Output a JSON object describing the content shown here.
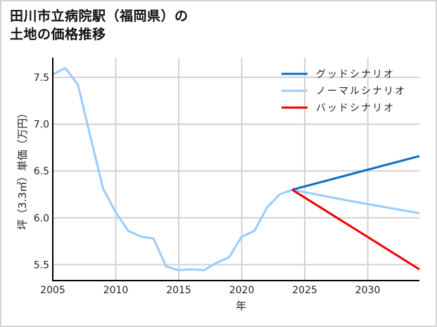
{
  "title": "田川市立病院駅（福岡県）の\n土地の価格推移",
  "colors": {
    "good": "#0a6fc2",
    "normal": "#99ccff",
    "bad": "#ee0000",
    "grid": "#d3d3d3",
    "axis": "#000000"
  },
  "chart_data": {
    "type": "line",
    "title": "田川市立病院駅（福岡県）の土地の価格推移",
    "xlabel": "年",
    "ylabel": "坪（3.3㎡）単価（万円）",
    "xlim": [
      2005,
      2034.1
    ],
    "ylim": [
      5.33,
      7.71
    ],
    "xticks": [
      2005,
      2010,
      2015,
      2020,
      2025,
      2030
    ],
    "yticks": [
      5.5,
      6.0,
      6.5,
      7.0,
      7.5
    ],
    "ytick_labels": [
      "5.5",
      "6.0",
      "6.5",
      "7.0",
      "7.5"
    ],
    "grid": true,
    "legend_position": "upper right",
    "series": [
      {
        "name": "グッドシナリオ",
        "color": "#0a6fc2",
        "x": [
          2024,
          2034.1
        ],
        "values": [
          6.3,
          6.66
        ]
      },
      {
        "name": "ノーマルシナリオ",
        "color": "#99ccff",
        "x": [
          2005,
          2006,
          2007,
          2008,
          2009,
          2010,
          2011,
          2012,
          2013,
          2014,
          2015,
          2016,
          2017,
          2018,
          2019,
          2020,
          2021,
          2022,
          2023,
          2024,
          2029,
          2034.1
        ],
        "values": [
          7.53,
          7.6,
          7.42,
          6.86,
          6.31,
          6.06,
          5.86,
          5.8,
          5.78,
          5.48,
          5.44,
          5.45,
          5.44,
          5.52,
          5.58,
          5.8,
          5.86,
          6.11,
          6.25,
          6.3,
          6.17,
          6.05
        ]
      },
      {
        "name": "バッドシナリオ",
        "color": "#ee0000",
        "x": [
          2024,
          2034.1
        ],
        "values": [
          6.3,
          5.45
        ]
      }
    ]
  }
}
